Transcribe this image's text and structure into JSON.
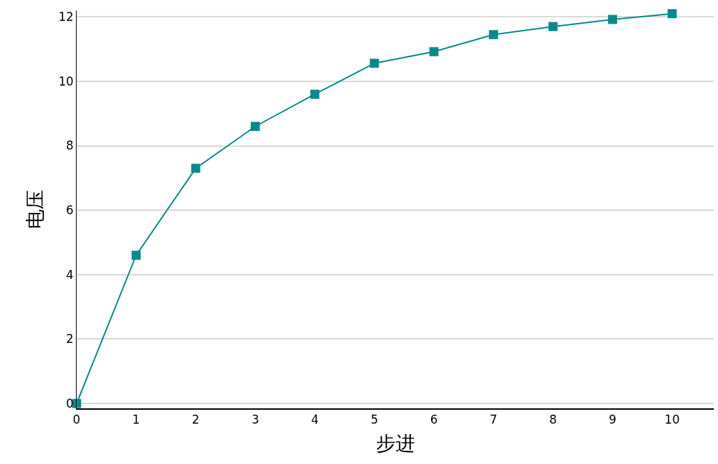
{
  "chart_data": {
    "type": "line",
    "xlabel": "步进",
    "ylabel": "电压",
    "x": [
      0,
      1,
      2,
      3,
      4,
      5,
      6,
      7,
      8,
      9,
      10
    ],
    "series": [
      {
        "color": "#008b8b",
        "values": [
          0,
          4.6,
          7.3,
          8.6,
          9.6,
          10.56,
          10.92,
          11.45,
          11.7,
          11.92,
          12.1
        ]
      }
    ],
    "xlim": [
      0,
      10.7
    ],
    "ylim": [
      -0.15,
      12.2
    ],
    "xticks": [
      0,
      1,
      2,
      3,
      4,
      5,
      6,
      7,
      8,
      9,
      10
    ],
    "yticks": [
      0,
      2,
      4,
      6,
      8,
      10,
      12
    ],
    "grid": "y",
    "marker": "square",
    "line_style": "solid",
    "legend": false
  }
}
